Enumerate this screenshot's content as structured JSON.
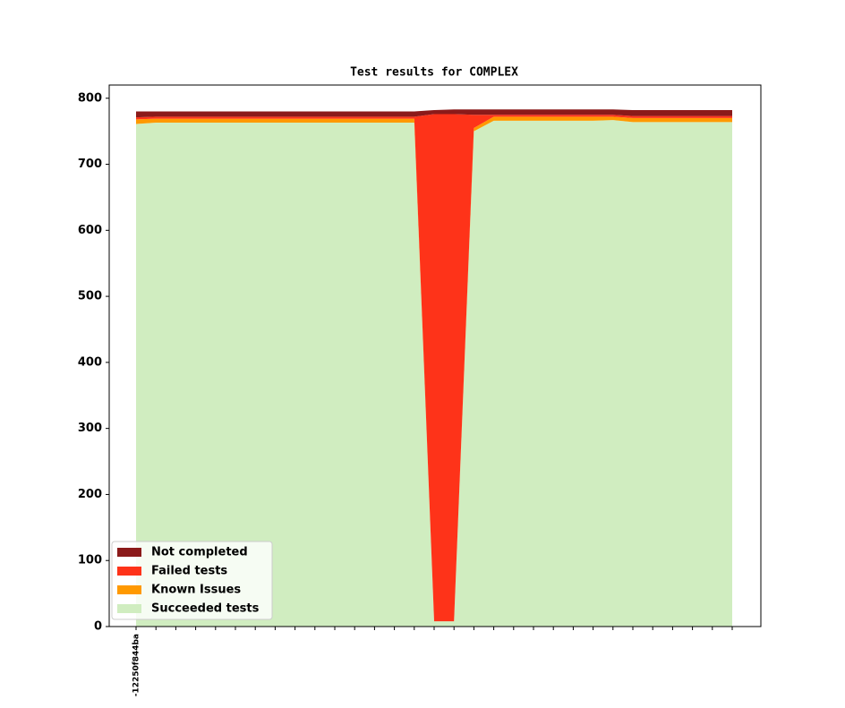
{
  "chart_data": {
    "type": "stacked-area",
    "title": "Test results for COMPLEX",
    "categories": [
      "-12250f844ba",
      null,
      null,
      null,
      null,
      null,
      null,
      null,
      null,
      null,
      null,
      null,
      null,
      null,
      null,
      null,
      null,
      null,
      null,
      null,
      null,
      null,
      null,
      null,
      null,
      null,
      null,
      null,
      null,
      null,
      null
    ],
    "series": [
      {
        "name": "Succeeded tests",
        "color": "#d0edc0",
        "values": [
          761,
          763,
          763,
          763,
          763,
          763,
          763,
          763,
          763,
          763,
          763,
          763,
          763,
          763,
          763,
          8,
          8,
          750,
          766,
          766,
          766,
          766,
          766,
          766,
          767,
          764,
          764,
          764,
          764,
          764,
          764
        ]
      },
      {
        "name": "Known Issues",
        "color": "#ff9900",
        "values": [
          7,
          6,
          6,
          6,
          6,
          6,
          6,
          6,
          6,
          6,
          6,
          6,
          6,
          6,
          6,
          0,
          0,
          5,
          6,
          6,
          6,
          6,
          6,
          6,
          5,
          6,
          6,
          6,
          6,
          6,
          6
        ]
      },
      {
        "name": "Failed tests",
        "color": "#fe3319",
        "values": [
          3,
          3,
          3,
          3,
          3,
          3,
          3,
          3,
          3,
          3,
          3,
          3,
          3,
          3,
          3,
          768,
          768,
          20,
          3,
          3,
          3,
          3,
          3,
          3,
          3,
          3,
          3,
          3,
          3,
          3,
          3
        ]
      },
      {
        "name": "Not completed",
        "color": "#8b1a1a",
        "values": [
          9,
          8,
          8,
          8,
          8,
          8,
          8,
          8,
          8,
          8,
          8,
          8,
          8,
          8,
          8,
          6,
          7,
          8,
          8,
          8,
          8,
          8,
          8,
          8,
          8,
          9,
          9,
          9,
          9,
          9,
          9
        ]
      }
    ],
    "ylim": [
      0,
      820
    ],
    "yticks": [
      0,
      100,
      200,
      300,
      400,
      500,
      600,
      700,
      800
    ],
    "legend": "lower left"
  }
}
